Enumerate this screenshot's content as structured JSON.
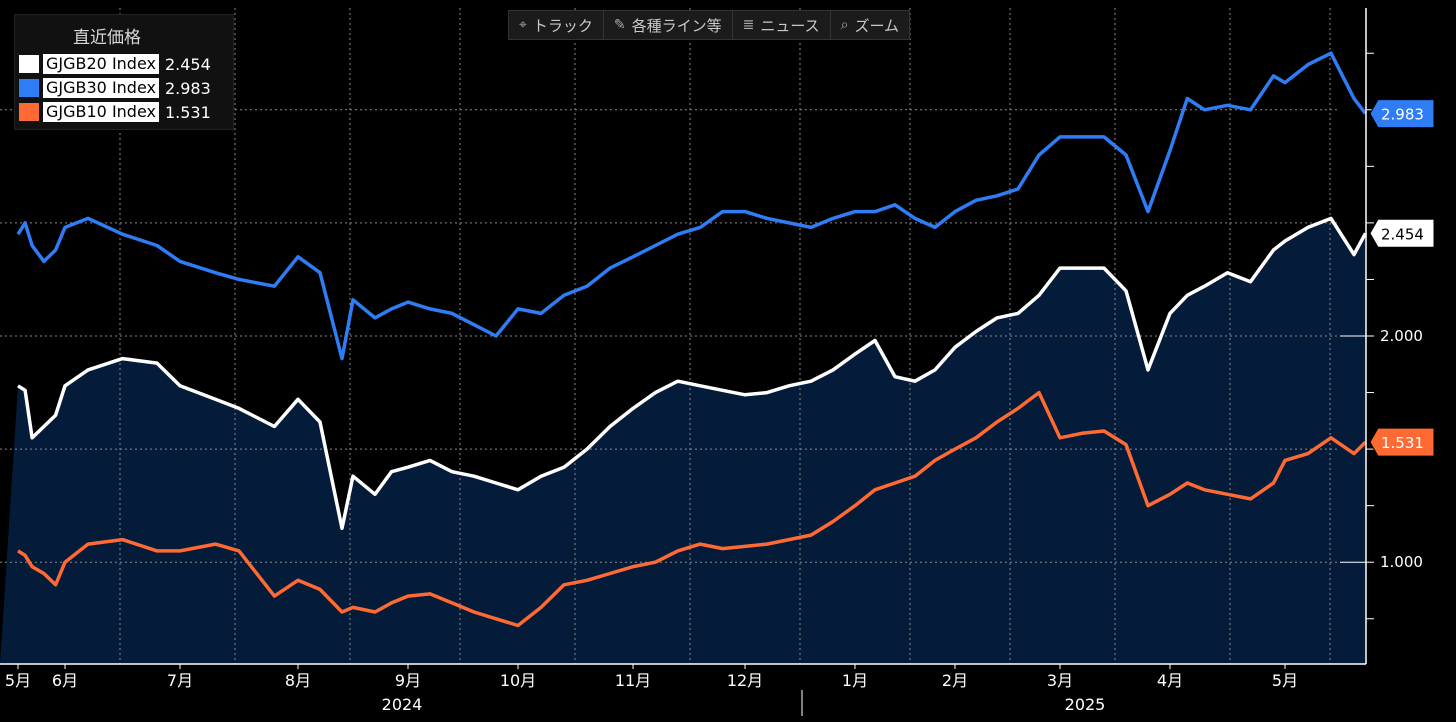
{
  "toolbar": {
    "track": "トラック",
    "lines": "各種ライン等",
    "news": "ニュース",
    "zoom": "ズーム"
  },
  "legend": {
    "title": "直近価格",
    "items": [
      {
        "name": "GJGB20 Index",
        "value": "2.454",
        "color": "#ffffff"
      },
      {
        "name": "GJGB30 Index",
        "value": "2.983",
        "color": "#2e7df5"
      },
      {
        "name": "GJGB10 Index",
        "value": "1.531",
        "color": "#ff6a33"
      }
    ]
  },
  "chart_data": {
    "type": "line",
    "ylim": [
      0.55,
      3.45
    ],
    "y_ticks": [
      "1.000",
      "2.000"
    ],
    "x_months": [
      "5月",
      "6月",
      "7月",
      "8月",
      "9月",
      "10月",
      "11月",
      "12月",
      "1月",
      "2月",
      "3月",
      "4月",
      "5月"
    ],
    "x_years": [
      "2024",
      "2025"
    ],
    "grid": true,
    "series": [
      {
        "name": "GJGB30 Index",
        "color": "#2e7df5",
        "last_value": "2.983",
        "last_label_color": "#2e7df5",
        "x": [
          0,
          0.15,
          0.3,
          0.55,
          0.8,
          1,
          1.2,
          1.5,
          1.8,
          2,
          2.3,
          2.5,
          2.8,
          3,
          3.2,
          3.4,
          3.5,
          3.7,
          3.85,
          4,
          4.2,
          4.4,
          4.6,
          4.8,
          5,
          5.2,
          5.4,
          5.6,
          5.8,
          6,
          6.2,
          6.4,
          6.6,
          6.8,
          7,
          7.2,
          7.4,
          7.6,
          7.8,
          8,
          8.2,
          8.4,
          8.6,
          8.8,
          9,
          9.2,
          9.4,
          9.6,
          9.8,
          10,
          10.2,
          10.4,
          10.6,
          10.8,
          11,
          11.15,
          11.3,
          11.5,
          11.7,
          11.9,
          12,
          12.2,
          12.4,
          12.6,
          12.7
        ],
        "values": [
          2.45,
          2.5,
          2.4,
          2.33,
          2.38,
          2.48,
          2.52,
          2.45,
          2.4,
          2.33,
          2.28,
          2.25,
          2.22,
          2.35,
          2.28,
          1.9,
          2.16,
          2.08,
          2.12,
          2.15,
          2.12,
          2.1,
          2.05,
          2.0,
          2.12,
          2.1,
          2.18,
          2.22,
          2.3,
          2.35,
          2.4,
          2.45,
          2.48,
          2.55,
          2.55,
          2.52,
          2.5,
          2.48,
          2.52,
          2.55,
          2.55,
          2.58,
          2.52,
          2.48,
          2.55,
          2.6,
          2.62,
          2.65,
          2.8,
          2.88,
          2.88,
          2.88,
          2.8,
          2.55,
          2.82,
          3.05,
          3.0,
          3.02,
          3.0,
          3.15,
          3.12,
          3.2,
          3.25,
          3.05,
          2.983
        ]
      },
      {
        "name": "GJGB20 Index",
        "color": "#ffffff",
        "last_value": "2.454",
        "last_label_color": "#ffffff",
        "x": [
          0,
          0.15,
          0.3,
          0.55,
          0.8,
          1,
          1.2,
          1.5,
          1.8,
          2,
          2.3,
          2.5,
          2.8,
          3,
          3.2,
          3.4,
          3.5,
          3.7,
          3.85,
          4,
          4.2,
          4.4,
          4.6,
          4.8,
          5,
          5.2,
          5.4,
          5.6,
          5.8,
          6,
          6.2,
          6.4,
          6.6,
          6.8,
          7,
          7.2,
          7.4,
          7.6,
          7.8,
          8,
          8.2,
          8.4,
          8.6,
          8.8,
          9,
          9.2,
          9.4,
          9.6,
          9.8,
          10,
          10.2,
          10.4,
          10.6,
          10.8,
          11,
          11.15,
          11.3,
          11.5,
          11.7,
          11.9,
          12,
          12.2,
          12.4,
          12.6,
          12.7
        ],
        "values": [
          1.78,
          1.76,
          1.55,
          1.6,
          1.65,
          1.78,
          1.85,
          1.9,
          1.88,
          1.78,
          1.72,
          1.68,
          1.6,
          1.72,
          1.62,
          1.15,
          1.38,
          1.3,
          1.4,
          1.42,
          1.45,
          1.4,
          1.38,
          1.35,
          1.32,
          1.38,
          1.42,
          1.5,
          1.6,
          1.68,
          1.75,
          1.8,
          1.78,
          1.76,
          1.74,
          1.75,
          1.78,
          1.8,
          1.85,
          1.92,
          1.98,
          1.82,
          1.8,
          1.85,
          1.95,
          2.02,
          2.08,
          2.1,
          2.18,
          2.3,
          2.3,
          2.3,
          2.2,
          1.85,
          2.1,
          2.18,
          2.22,
          2.28,
          2.24,
          2.38,
          2.42,
          2.48,
          2.52,
          2.36,
          2.454
        ]
      },
      {
        "name": "GJGB10 Index",
        "color": "#ff6a33",
        "last_value": "1.531",
        "last_label_color": "#ff6a33",
        "x": [
          0,
          0.15,
          0.3,
          0.55,
          0.8,
          1,
          1.2,
          1.5,
          1.8,
          2,
          2.3,
          2.5,
          2.8,
          3,
          3.2,
          3.4,
          3.5,
          3.7,
          3.85,
          4,
          4.2,
          4.4,
          4.6,
          4.8,
          5,
          5.2,
          5.4,
          5.6,
          5.8,
          6,
          6.2,
          6.4,
          6.6,
          6.8,
          7,
          7.2,
          7.4,
          7.6,
          7.8,
          8,
          8.2,
          8.4,
          8.6,
          8.8,
          9,
          9.2,
          9.4,
          9.6,
          9.8,
          10,
          10.2,
          10.4,
          10.6,
          10.8,
          11,
          11.15,
          11.3,
          11.5,
          11.7,
          11.9,
          12,
          12.2,
          12.4,
          12.6,
          12.7
        ],
        "values": [
          1.05,
          1.03,
          0.98,
          0.95,
          0.9,
          1.0,
          1.08,
          1.1,
          1.05,
          1.05,
          1.08,
          1.05,
          0.85,
          0.92,
          0.88,
          0.78,
          0.8,
          0.78,
          0.82,
          0.85,
          0.86,
          0.82,
          0.78,
          0.75,
          0.72,
          0.8,
          0.9,
          0.92,
          0.95,
          0.98,
          1.0,
          1.05,
          1.08,
          1.06,
          1.07,
          1.08,
          1.1,
          1.12,
          1.18,
          1.25,
          1.32,
          1.35,
          1.38,
          1.45,
          1.5,
          1.55,
          1.62,
          1.68,
          1.75,
          1.55,
          1.57,
          1.58,
          1.52,
          1.25,
          1.3,
          1.35,
          1.32,
          1.3,
          1.28,
          1.35,
          1.45,
          1.48,
          1.55,
          1.48,
          1.531
        ]
      }
    ]
  }
}
